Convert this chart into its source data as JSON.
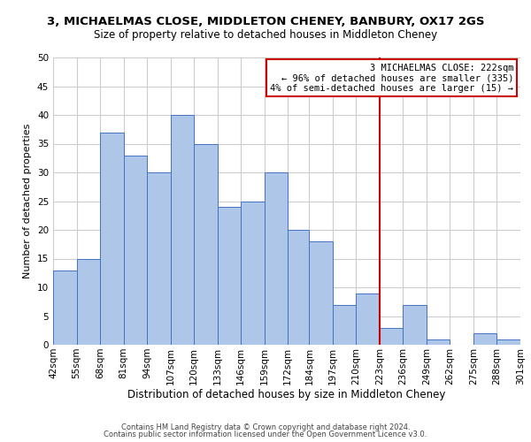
{
  "title": "3, MICHAELMAS CLOSE, MIDDLETON CHENEY, BANBURY, OX17 2GS",
  "subtitle": "Size of property relative to detached houses in Middleton Cheney",
  "xlabel": "Distribution of detached houses by size in Middleton Cheney",
  "ylabel": "Number of detached properties",
  "footer_line1": "Contains HM Land Registry data © Crown copyright and database right 2024.",
  "footer_line2": "Contains public sector information licensed under the Open Government Licence v3.0.",
  "bin_labels": [
    "42sqm",
    "55sqm",
    "68sqm",
    "81sqm",
    "94sqm",
    "107sqm",
    "120sqm",
    "133sqm",
    "146sqm",
    "159sqm",
    "172sqm",
    "184sqm",
    "197sqm",
    "210sqm",
    "223sqm",
    "236sqm",
    "249sqm",
    "262sqm",
    "275sqm",
    "288sqm",
    "301sqm"
  ],
  "bin_edges": [
    42,
    55,
    68,
    81,
    94,
    107,
    120,
    133,
    146,
    159,
    172,
    184,
    197,
    210,
    223,
    236,
    249,
    262,
    275,
    288,
    301
  ],
  "bar_heights": [
    13,
    15,
    37,
    33,
    30,
    40,
    35,
    24,
    25,
    30,
    20,
    18,
    7,
    9,
    3,
    7,
    1,
    0,
    2,
    1
  ],
  "bar_color": "#aec6e8",
  "bar_edge_color": "#4472c4",
  "grid_color": "#cccccc",
  "vline_x": 223,
  "vline_color": "#cc0000",
  "annotation_box_edge_color": "#cc0000",
  "annotation_line1": "3 MICHAELMAS CLOSE: 222sqm",
  "annotation_line2": "← 96% of detached houses are smaller (335)",
  "annotation_line3": "4% of semi-detached houses are larger (15) →",
  "ylim": [
    0,
    50
  ],
  "yticks": [
    0,
    5,
    10,
    15,
    20,
    25,
    30,
    35,
    40,
    45,
    50
  ],
  "background_color": "#ffffff",
  "title_fontsize": 9.5,
  "subtitle_fontsize": 8.5,
  "ylabel_fontsize": 8,
  "xlabel_fontsize": 8.5,
  "tick_fontsize": 7.5,
  "annotation_fontsize": 7.5,
  "footer_fontsize": 6
}
